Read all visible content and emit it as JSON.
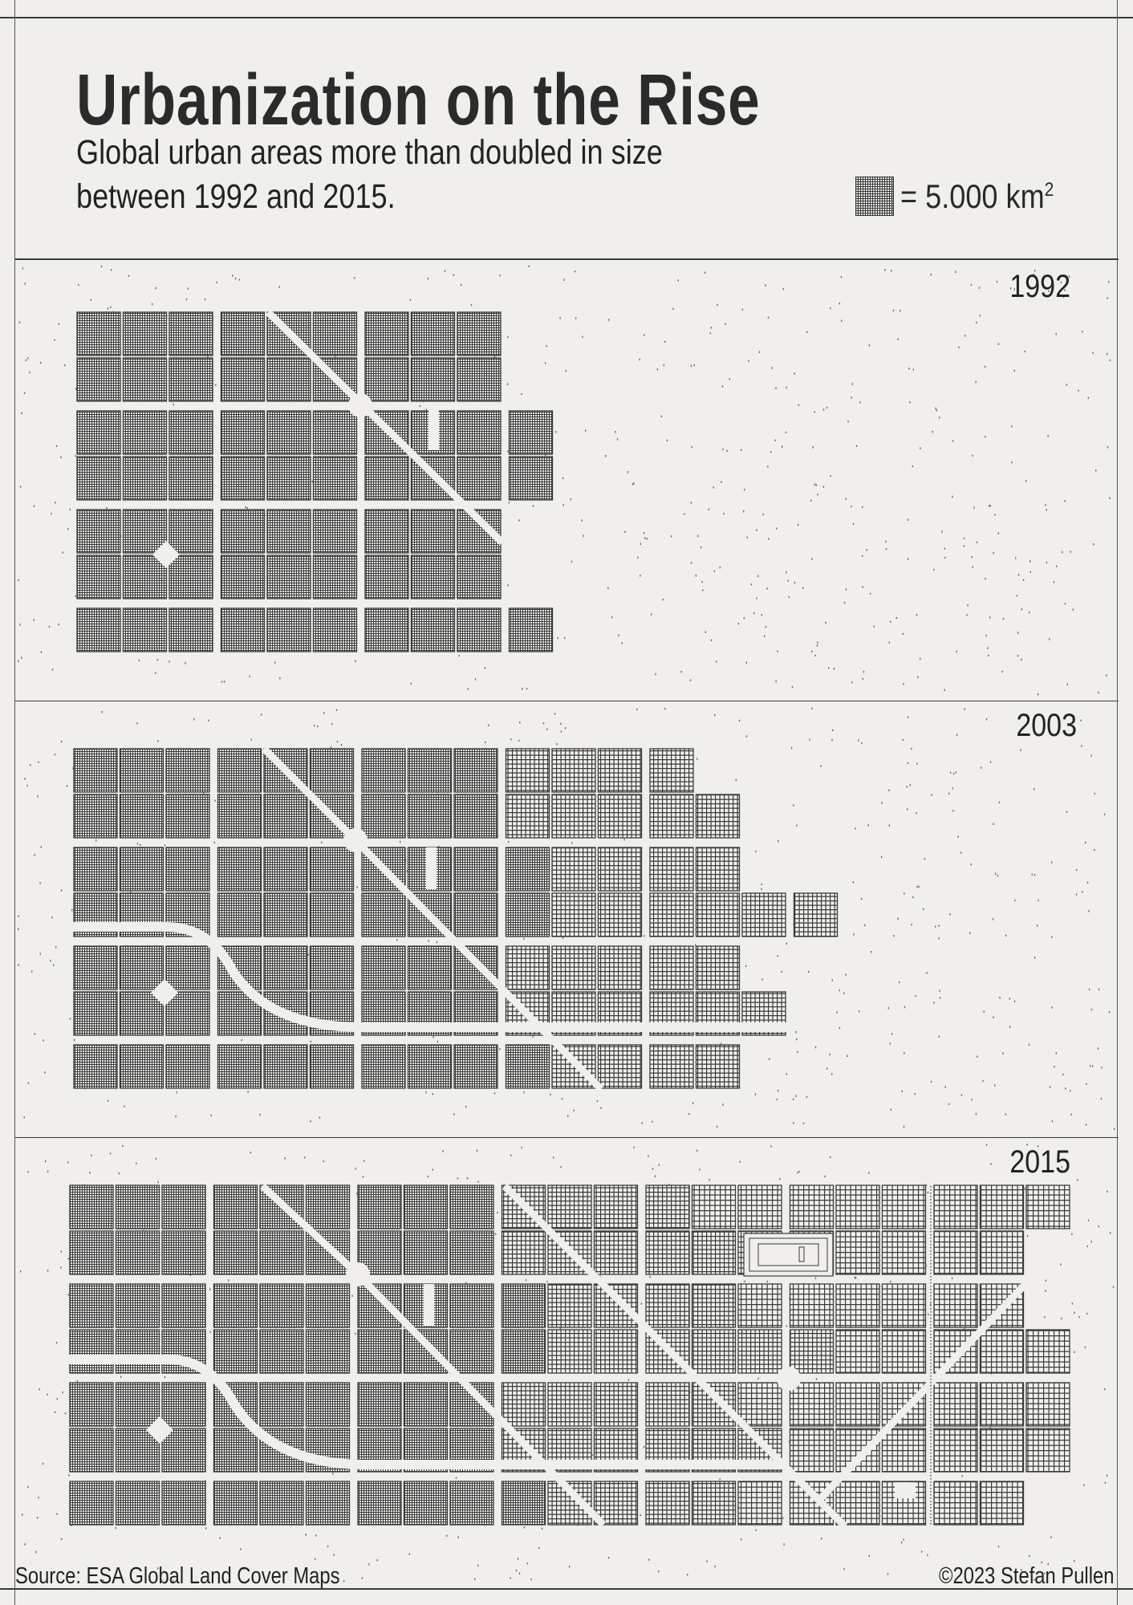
{
  "header": {
    "title": "Urbanization on the Rise",
    "subtitle_line1": "Global urban areas more than doubled in size",
    "subtitle_line2": "between 1992 and 2015."
  },
  "legend": {
    "label": "= 5.000 km",
    "superscript": "2",
    "icon": "grid-tile-icon"
  },
  "footer": {
    "source": "Source: ESA Global Land Cover Maps",
    "credit": "©2023 Stefan Pullen"
  },
  "colors": {
    "background": "#f1efeb",
    "tile_ink": "#3a3a3a",
    "road": "#f1efeb"
  },
  "chart_data": {
    "type": "bar",
    "unit": "5.000 km²",
    "categories": [
      "1992",
      "2003",
      "2015"
    ],
    "values": [
      66,
      100,
      144
    ],
    "panels": [
      {
        "year": "1992",
        "tiles": 66,
        "row_lengths": [
          9,
          9,
          10,
          10,
          9,
          9,
          10
        ]
      },
      {
        "year": "2003",
        "tiles": 100,
        "row_lengths": [
          13,
          14,
          14,
          16,
          14,
          15,
          14
        ]
      },
      {
        "year": "2015",
        "tiles": 144,
        "row_lengths": [
          21,
          20,
          20,
          21,
          21,
          21,
          20
        ]
      }
    ]
  }
}
